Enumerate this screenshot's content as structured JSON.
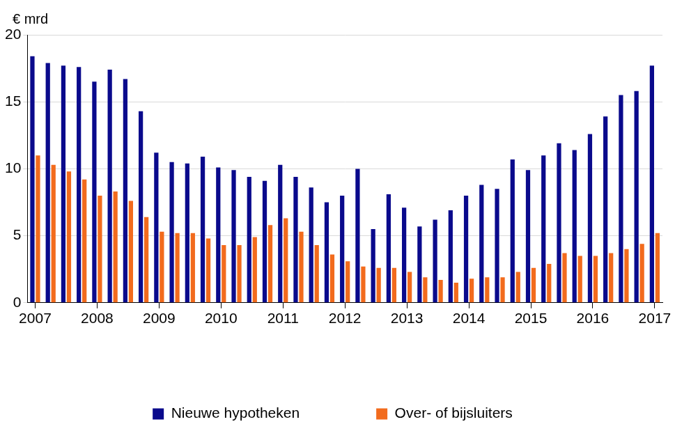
{
  "chart_data": {
    "type": "bar",
    "y_label": "€ mrd",
    "categories": [
      "2007",
      null,
      null,
      null,
      "2008",
      null,
      null,
      null,
      "2009",
      null,
      null,
      null,
      "2010",
      null,
      null,
      null,
      "2011",
      null,
      null,
      null,
      "2012",
      null,
      null,
      null,
      "2013",
      null,
      null,
      null,
      "2014",
      null,
      null,
      null,
      "2015",
      null,
      null,
      null,
      "2016",
      null,
      null,
      null,
      "2017"
    ],
    "series": [
      {
        "name": "Nieuwe hypotheken",
        "color": "#0a0a8c",
        "values": [
          18.4,
          17.9,
          17.7,
          17.6,
          16.5,
          17.4,
          16.7,
          14.3,
          11.2,
          10.5,
          10.4,
          10.9,
          10.1,
          9.9,
          9.4,
          9.1,
          10.3,
          9.4,
          8.6,
          7.5,
          8.0,
          10.0,
          5.5,
          8.1,
          7.1,
          5.7,
          6.2,
          6.9,
          8.0,
          8.8,
          8.5,
          10.7,
          9.9,
          11.0,
          11.9,
          11.4,
          12.6,
          13.9,
          15.5,
          15.8,
          17.7
        ]
      },
      {
        "name": "Over- of bijsluiters",
        "color": "#f26b1d",
        "values": [
          11.0,
          10.3,
          9.8,
          9.2,
          8.0,
          8.3,
          7.6,
          6.4,
          5.3,
          5.2,
          5.2,
          4.8,
          4.3,
          4.3,
          4.9,
          5.8,
          6.3,
          5.3,
          4.3,
          3.6,
          3.1,
          2.7,
          2.6,
          2.6,
          2.3,
          1.9,
          1.7,
          1.5,
          1.8,
          1.9,
          1.9,
          2.3,
          2.6,
          2.9,
          3.7,
          3.5,
          3.5,
          3.7,
          4.0,
          4.4,
          5.2
        ]
      }
    ],
    "ylim": [
      0,
      20
    ],
    "yticks": [
      0,
      5,
      10,
      15,
      20
    ],
    "grid": true,
    "legend": "bottom"
  }
}
